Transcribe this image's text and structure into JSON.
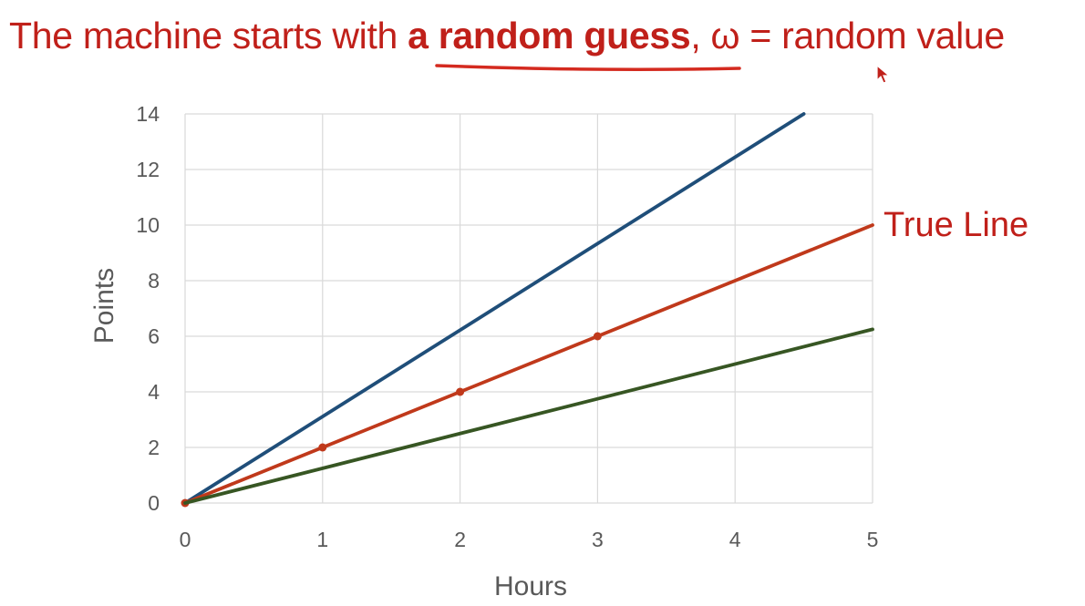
{
  "header": {
    "title_part1": "The machine starts with ",
    "title_bold": "a random guess",
    "title_part2": ", ω = random value"
  },
  "colors": {
    "title": "#c0201a",
    "underline": "#d42a1f",
    "grid": "#d9d9d9",
    "text": "#595959",
    "cursor": "#c0201a"
  },
  "icons": {
    "cursor": "pointer-cursor-icon"
  },
  "chart_data": {
    "type": "line",
    "title": "",
    "xlabel": "Hours",
    "ylabel": "Points",
    "xlim": [
      0,
      5
    ],
    "ylim": [
      0,
      14
    ],
    "xticks": [
      "0",
      "1",
      "2",
      "3",
      "4",
      "5"
    ],
    "yticks": [
      "0",
      "2",
      "4",
      "6",
      "8",
      "10",
      "12",
      "14"
    ],
    "grid": true,
    "series": [
      {
        "name": "",
        "color": "#1f4e79",
        "markers": false,
        "points": [
          [
            0,
            0
          ],
          [
            4.5,
            14
          ]
        ]
      },
      {
        "name": "True Line",
        "color": "#c0391b",
        "markers": true,
        "points": [
          [
            0,
            0
          ],
          [
            1,
            2
          ],
          [
            2,
            4
          ],
          [
            3,
            6
          ],
          [
            4,
            8
          ],
          [
            5,
            10
          ]
        ],
        "marker_points": [
          [
            0,
            0
          ],
          [
            1,
            2
          ],
          [
            2,
            4
          ],
          [
            3,
            6
          ]
        ]
      },
      {
        "name": "",
        "color": "#375623",
        "markers": false,
        "points": [
          [
            0,
            0
          ],
          [
            5,
            6.25
          ]
        ]
      }
    ]
  }
}
